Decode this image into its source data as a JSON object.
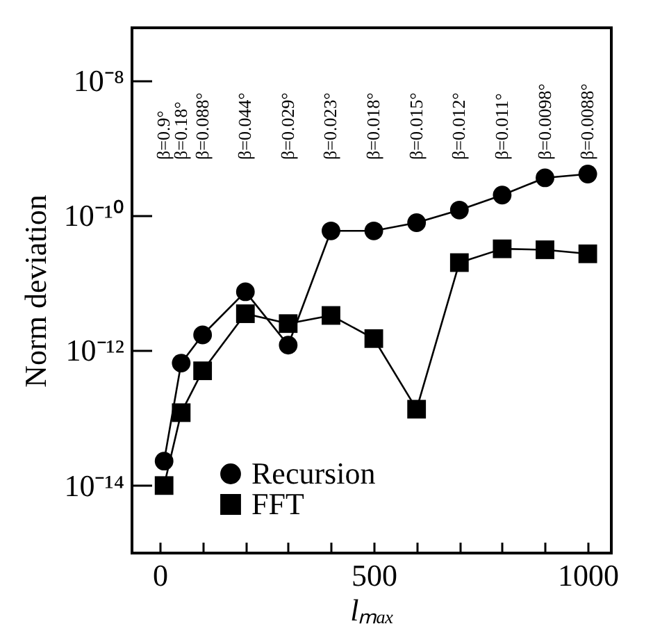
{
  "chart_data": {
    "type": "line",
    "xlabel": "lₘₐₓ",
    "ylabel": "Norm deviation",
    "x": [
      10,
      50,
      100,
      200,
      300,
      400,
      500,
      600,
      700,
      800,
      900,
      1000
    ],
    "series": [
      {
        "name": "Recursion",
        "color": "#000000",
        "marker": "circle",
        "values": [
          2.3e-14,
          6.5e-13,
          1.7e-12,
          7.4e-12,
          1.2e-12,
          5.9e-11,
          5.9e-11,
          7.8e-11,
          1.2e-10,
          2e-10,
          3.6e-10,
          4.1e-10
        ]
      },
      {
        "name": "FFT",
        "color": "#000000",
        "marker": "square",
        "values": [
          1e-14,
          1.2e-13,
          5e-13,
          3.5e-12,
          2.5e-12,
          3.3e-12,
          1.5e-12,
          1.35e-13,
          2e-11,
          3.2e-11,
          3.1e-11,
          2.7e-11
        ]
      }
    ],
    "log": "y",
    "ylim": [
      1e-15,
      6e-08
    ],
    "yticks": [
      {
        "value": 1e-14,
        "label": "10⁻¹⁴"
      },
      {
        "value": 1e-12,
        "label": "10⁻¹²"
      },
      {
        "value": 1e-10,
        "label": "10⁻¹⁰"
      },
      {
        "value": 1e-08,
        "label": "10⁻⁸"
      }
    ],
    "xlim": [
      -65,
      1055
    ],
    "xticks": [
      0,
      {
        "value": 100,
        "label": null
      },
      {
        "value": 200,
        "label": null
      },
      {
        "value": 300,
        "label": null
      },
      {
        "value": 400,
        "label": null
      },
      500,
      {
        "value": 600,
        "label": null
      },
      {
        "value": 700,
        "label": null
      },
      {
        "value": 800,
        "label": null
      },
      {
        "value": 900,
        "label": null
      },
      1000
    ],
    "grid": false,
    "legend": "bottom left",
    "annotations": [
      "β=0.9°",
      "β=0.18°",
      "β=0.088°",
      "β=0.044°",
      "β=0.029°",
      "β=0.023°",
      "β=0.018°",
      "β=0.015°",
      "β=0.012°",
      "β=0.011°",
      "β=0.0098°",
      "β=0.0088°"
    ]
  }
}
